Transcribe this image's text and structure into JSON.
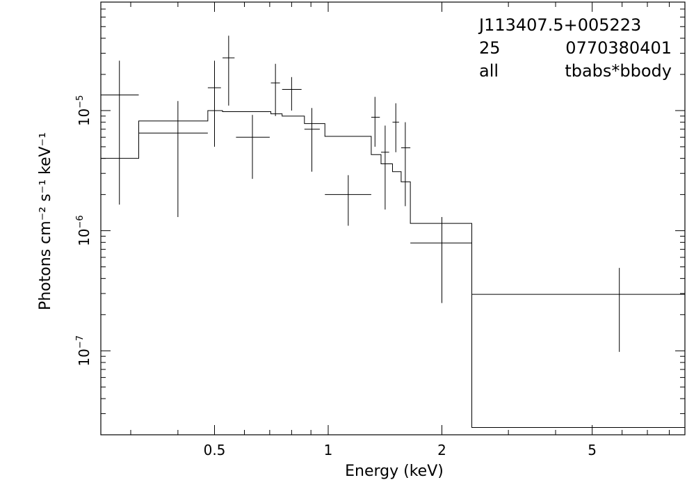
{
  "chart_data": {
    "type": "scatter",
    "title": "",
    "xlabel": "Energy (keV)",
    "ylabel": "Photons cm⁻² s⁻¹ keV⁻¹",
    "xscale": "log",
    "yscale": "log",
    "xlim": [
      0.25,
      8.8
    ],
    "ylim": [
      2e-08,
      8e-05
    ],
    "grid": false,
    "x_ticks": [
      {
        "value": 0.5,
        "label": "0.5"
      },
      {
        "value": 1,
        "label": "1"
      },
      {
        "value": 2,
        "label": "2"
      },
      {
        "value": 5,
        "label": "5"
      }
    ],
    "y_ticks": [
      {
        "value": 1e-05,
        "base": "10",
        "exp": "−5"
      },
      {
        "value": 1e-06,
        "base": "10",
        "exp": "−6"
      },
      {
        "value": 1e-07,
        "base": "10",
        "exp": "−7"
      }
    ],
    "annotations": [
      "J113407.5+005223",
      "25",
      "0770380401",
      "all",
      "tbabs*bbody"
    ],
    "series": [
      {
        "kind": "data",
        "points": [
          {
            "x": 0.28,
            "xlo": 0.25,
            "xhi": 0.315,
            "y": 1.35e-05,
            "ylo": 1.65e-06,
            "yhi": 2.6e-05
          },
          {
            "x": 0.4,
            "xlo": 0.315,
            "xhi": 0.48,
            "y": 6.5e-06,
            "ylo": 1.3e-06,
            "yhi": 1.2e-05
          },
          {
            "x": 0.5,
            "xlo": 0.48,
            "xhi": 0.52,
            "y": 1.55e-05,
            "ylo": 5e-06,
            "yhi": 2.6e-05
          },
          {
            "x": 0.545,
            "xlo": 0.525,
            "xhi": 0.565,
            "y": 2.75e-05,
            "ylo": 1.1e-05,
            "yhi": 4.2e-05
          },
          {
            "x": 0.63,
            "xlo": 0.57,
            "xhi": 0.7,
            "y": 6e-06,
            "ylo": 2.7e-06,
            "yhi": 9.2e-06
          },
          {
            "x": 0.725,
            "xlo": 0.705,
            "xhi": 0.745,
            "y": 1.7e-05,
            "ylo": 9e-06,
            "yhi": 2.45e-05
          },
          {
            "x": 0.8,
            "xlo": 0.755,
            "xhi": 0.85,
            "y": 1.5e-05,
            "ylo": 1e-05,
            "yhi": 1.9e-05
          },
          {
            "x": 0.905,
            "xlo": 0.865,
            "xhi": 0.95,
            "y": 7e-06,
            "ylo": 3.1e-06,
            "yhi": 1.05e-05
          },
          {
            "x": 1.13,
            "xlo": 0.98,
            "xhi": 1.3,
            "y": 2e-06,
            "ylo": 1.1e-06,
            "yhi": 2.9e-06
          },
          {
            "x": 1.33,
            "xlo": 1.3,
            "xhi": 1.37,
            "y": 8.8e-06,
            "ylo": 5e-06,
            "yhi": 1.3e-05
          },
          {
            "x": 1.415,
            "xlo": 1.38,
            "xhi": 1.45,
            "y": 4.5e-06,
            "ylo": 1.5e-06,
            "yhi": 7.5e-06
          },
          {
            "x": 1.51,
            "xlo": 1.48,
            "xhi": 1.54,
            "y": 8e-06,
            "ylo": 4.5e-06,
            "yhi": 1.15e-05
          },
          {
            "x": 1.6,
            "xlo": 1.56,
            "xhi": 1.65,
            "y": 4.9e-06,
            "ylo": 1.6e-06,
            "yhi": 8e-06
          },
          {
            "x": 2.0,
            "xlo": 1.65,
            "xhi": 2.4,
            "y": 7.9e-07,
            "ylo": 2.5e-07,
            "yhi": 1.3e-06
          },
          {
            "x": 5.9,
            "xlo": 2.4,
            "xhi": 8.8,
            "y": 2.95e-07,
            "ylo": 9.8e-08,
            "yhi": 4.9e-07
          }
        ]
      },
      {
        "kind": "model",
        "steps": [
          {
            "xlo": 0.25,
            "xhi": 0.315,
            "y": 4e-06
          },
          {
            "xlo": 0.315,
            "xhi": 0.48,
            "y": 8.2e-06
          },
          {
            "xlo": 0.48,
            "xhi": 0.525,
            "y": 1e-05
          },
          {
            "xlo": 0.525,
            "xhi": 0.705,
            "y": 9.8e-06
          },
          {
            "xlo": 0.705,
            "xhi": 0.755,
            "y": 9.4e-06
          },
          {
            "xlo": 0.755,
            "xhi": 0.865,
            "y": 9e-06
          },
          {
            "xlo": 0.865,
            "xhi": 0.98,
            "y": 7.8e-06
          },
          {
            "xlo": 0.98,
            "xhi": 1.3,
            "y": 6.1e-06
          },
          {
            "xlo": 1.3,
            "xhi": 1.38,
            "y": 4.3e-06
          },
          {
            "xlo": 1.38,
            "xhi": 1.48,
            "y": 3.6e-06
          },
          {
            "xlo": 1.48,
            "xhi": 1.56,
            "y": 3.1e-06
          },
          {
            "xlo": 1.56,
            "xhi": 1.65,
            "y": 2.55e-06
          },
          {
            "xlo": 1.65,
            "xhi": 2.4,
            "y": 1.15e-06
          },
          {
            "xlo": 2.4,
            "xhi": 8.8,
            "y": 2.3e-08
          }
        ]
      }
    ]
  }
}
